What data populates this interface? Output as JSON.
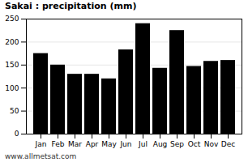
{
  "chart_data": {
    "type": "bar",
    "title": "Sakai : precipitation (mm)",
    "categories": [
      "Jan",
      "Feb",
      "Mar",
      "Apr",
      "May",
      "Jun",
      "Jul",
      "Aug",
      "Sep",
      "Oct",
      "Nov",
      "Dec"
    ],
    "values": [
      175,
      150,
      130,
      130,
      120,
      183,
      240,
      143,
      225,
      147,
      158,
      160
    ],
    "ylim": [
      0,
      250
    ],
    "yticks": [
      0,
      50,
      100,
      150,
      200,
      250
    ],
    "grid": true,
    "annotations": [
      "www.allmetsat.com"
    ]
  }
}
